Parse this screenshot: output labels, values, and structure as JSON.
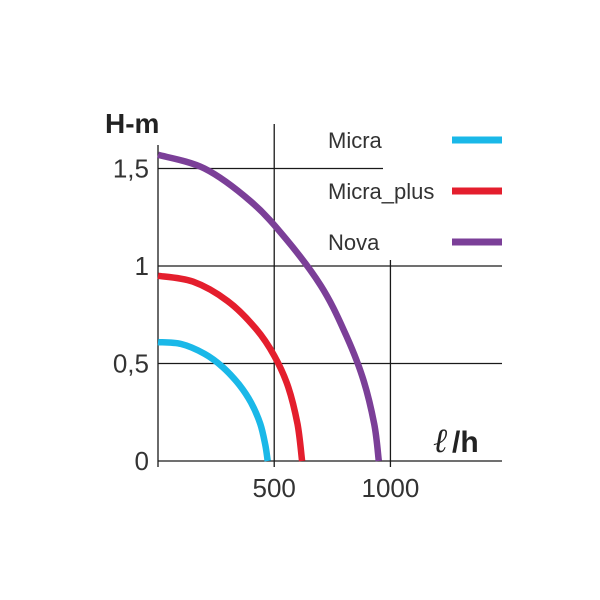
{
  "chart_data": {
    "type": "line",
    "ylabel": "H-m",
    "xlabel_symbol": "ℓ",
    "xlabel_suffix": "/h",
    "xlim": [
      0,
      1480
    ],
    "ylim": [
      0,
      1.6
    ],
    "x_ticks": [
      "500",
      "1000"
    ],
    "y_ticks": [
      "0",
      "0,5",
      "1",
      "1,5"
    ],
    "grid": true,
    "legend_position": "top-right",
    "series": [
      {
        "name": "Micra",
        "color": "#1ab8e8",
        "x": [
          0,
          100,
          200,
          280,
          350,
          400,
          440,
          462,
          472
        ],
        "y": [
          0.61,
          0.6,
          0.55,
          0.48,
          0.39,
          0.3,
          0.19,
          0.08,
          0
        ]
      },
      {
        "name": "Micra_plus",
        "color": "#e41e2d",
        "x": [
          0,
          150,
          300,
          420,
          500,
          560,
          600,
          620
        ],
        "y": [
          0.95,
          0.92,
          0.82,
          0.68,
          0.54,
          0.38,
          0.19,
          0
        ]
      },
      {
        "name": "Nova",
        "color": "#7b3f98",
        "x": [
          0,
          200,
          400,
          550,
          700,
          800,
          880,
          930,
          950
        ],
        "y": [
          1.57,
          1.5,
          1.33,
          1.14,
          0.9,
          0.67,
          0.43,
          0.19,
          0
        ]
      }
    ]
  }
}
